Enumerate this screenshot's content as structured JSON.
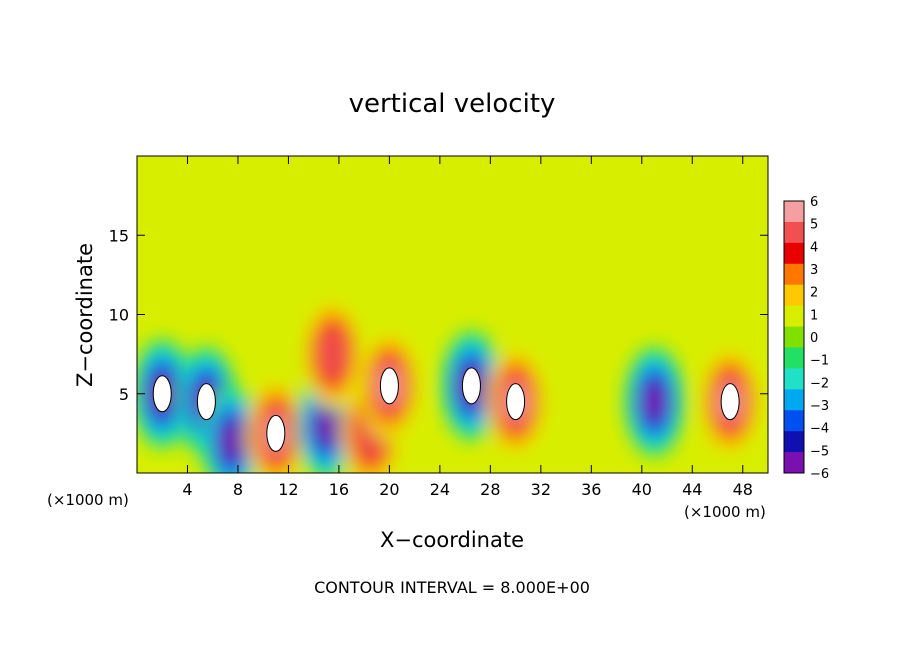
{
  "chart_data": {
    "type": "heatmap",
    "title": "vertical velocity",
    "xlabel": "X−coordinate",
    "ylabel": "Z−coordinate",
    "x_unit_left": "(×1000 m)",
    "x_unit_right": "(×1000 m)",
    "xlim": [
      0,
      50
    ],
    "ylim": [
      0,
      20
    ],
    "x_ticks": [
      4,
      8,
      12,
      16,
      20,
      24,
      28,
      32,
      36,
      40,
      44,
      48
    ],
    "y_ticks": [
      5,
      10,
      15
    ],
    "colorbar": {
      "range": [
        -6,
        6
      ],
      "labels": [
        "6",
        "5",
        "4",
        "3",
        "2",
        "1",
        "0",
        "−1",
        "−2",
        "−3",
        "−4",
        "−5",
        "−6"
      ],
      "colors": [
        "#f4a0a0",
        "#f05050",
        "#e80000",
        "#ff7700",
        "#ffc800",
        "#d8ee00",
        "#80e000",
        "#22e066",
        "#20e0c8",
        "#00a8f0",
        "#0050f0",
        "#1010b0",
        "#7a10b0"
      ]
    },
    "background_value": 0.6,
    "features": [
      {
        "x": 2.0,
        "z": 5.0,
        "w": -6.5
      },
      {
        "x": 5.5,
        "z": 4.5,
        "w": -6.5
      },
      {
        "x": 7.5,
        "z": 2.0,
        "w": -6.0
      },
      {
        "x": 11.0,
        "z": 2.5,
        "w": 6.5
      },
      {
        "x": 15.0,
        "z": 3.0,
        "w": -6.0
      },
      {
        "x": 15.5,
        "z": 7.5,
        "w": 5.0
      },
      {
        "x": 18.5,
        "z": 2.5,
        "w": 5.0
      },
      {
        "x": 20.0,
        "z": 5.5,
        "w": 6.5
      },
      {
        "x": 26.5,
        "z": 5.5,
        "w": -6.5
      },
      {
        "x": 30.0,
        "z": 4.5,
        "w": 6.5
      },
      {
        "x": 41.0,
        "z": 4.5,
        "w": -5.5
      },
      {
        "x": 47.0,
        "z": 4.5,
        "w": 6.5
      }
    ],
    "footer": "CONTOUR INTERVAL = 8.000E+00"
  }
}
